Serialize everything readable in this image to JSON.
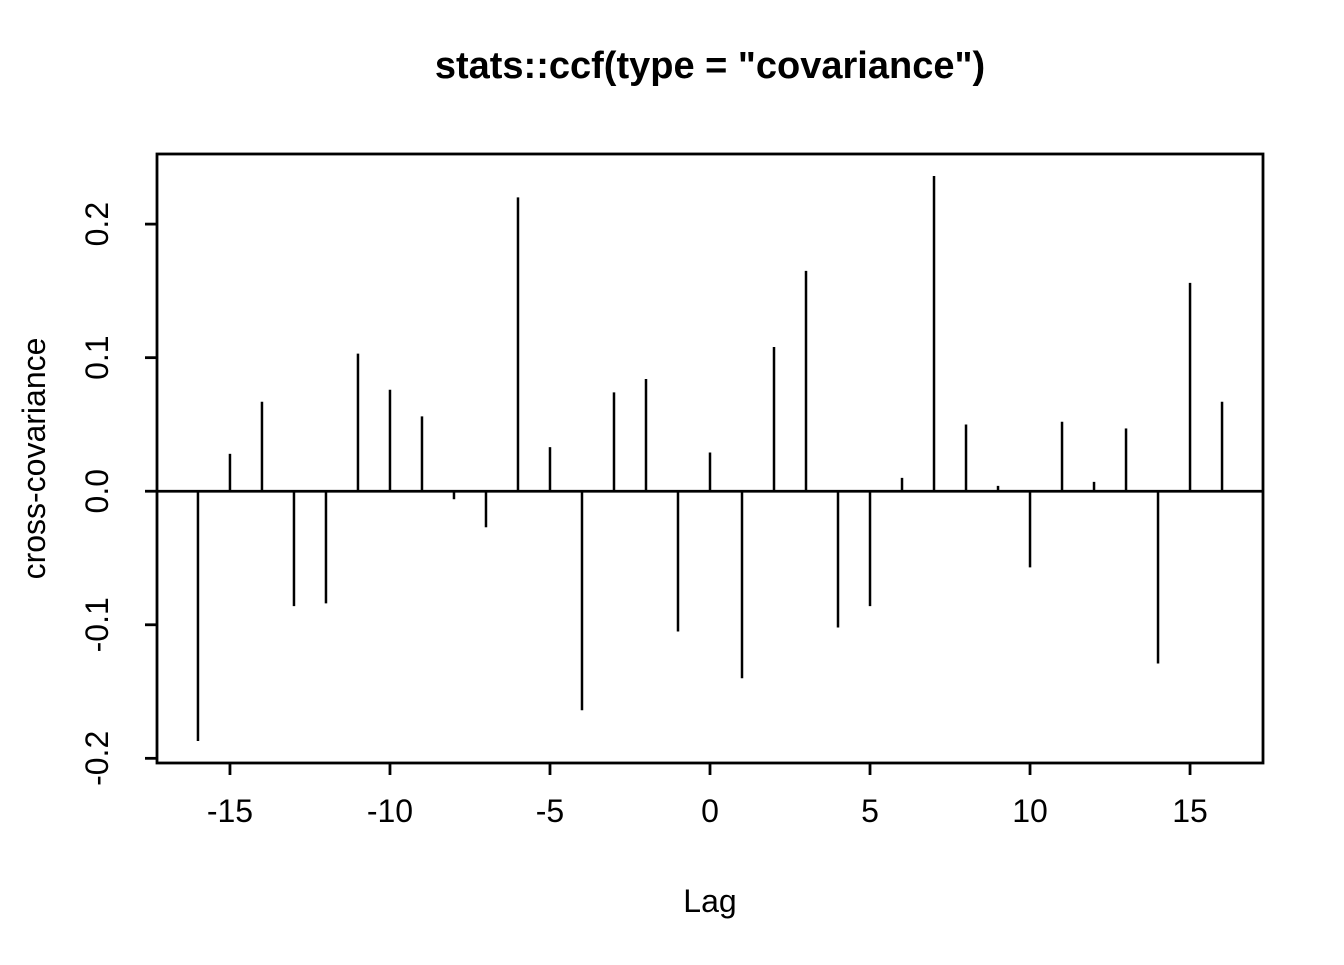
{
  "chart_data": {
    "type": "bar",
    "subtype": "stem-vertical-lines",
    "title": "stats::ccf(type = \"covariance\")",
    "xlabel": "Lag",
    "ylabel": "cross-covariance",
    "x": [
      -16,
      -15,
      -14,
      -13,
      -12,
      -11,
      -10,
      -9,
      -8,
      -7,
      -6,
      -5,
      -4,
      -3,
      -2,
      -1,
      0,
      1,
      2,
      3,
      4,
      5,
      6,
      7,
      8,
      9,
      10,
      11,
      12,
      13,
      14,
      15,
      16
    ],
    "values": [
      -0.187,
      0.028,
      0.067,
      -0.086,
      -0.084,
      0.103,
      0.076,
      0.056,
      -0.006,
      -0.027,
      0.22,
      0.033,
      -0.164,
      0.074,
      0.084,
      -0.105,
      0.029,
      -0.14,
      0.108,
      0.165,
      -0.102,
      -0.086,
      0.01,
      0.236,
      0.05,
      0.004,
      -0.057,
      0.052,
      0.007,
      0.047,
      -0.129,
      0.156,
      0.067
    ],
    "baseline": 0,
    "xlim": [
      -17.28,
      17.28
    ],
    "ylim": [
      -0.2035,
      0.2525
    ],
    "xticks": {
      "values": [
        -15,
        -10,
        -5,
        0,
        5,
        10,
        15
      ],
      "labels": [
        "-15",
        "-10",
        "-5",
        "0",
        "5",
        "10",
        "15"
      ]
    },
    "yticks": {
      "values": [
        -0.2,
        -0.1,
        0.0,
        0.1,
        0.2
      ],
      "labels": [
        "-0.2",
        "-0.1",
        "0.0",
        "0.1",
        "0.2"
      ]
    },
    "grid": false,
    "legend": null,
    "colors": {
      "line": "#000000",
      "background": "#ffffff"
    }
  }
}
